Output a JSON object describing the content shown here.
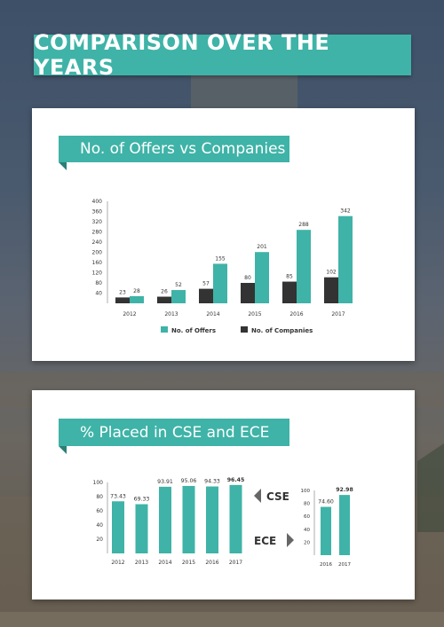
{
  "banner": {
    "title": "COMPARISON OVER THE YEARS"
  },
  "colors": {
    "teal": "#3fb3a7",
    "dark": "#333333"
  },
  "section1": {
    "title": "No. of Offers vs Companies"
  },
  "section2": {
    "title": "% Placed in CSE and ECE",
    "cse_label": "CSE",
    "ece_label": "ECE"
  },
  "chart_data": [
    {
      "type": "bar",
      "categories": [
        "2012",
        "2013",
        "2014",
        "2015",
        "2016",
        "2017"
      ],
      "series": [
        {
          "name": "No. of Offers",
          "values": [
            28,
            52,
            155,
            201,
            288,
            342
          ],
          "color": "#3fb3a7"
        },
        {
          "name": "No. of Companies",
          "values": [
            23,
            26,
            57,
            80,
            85,
            102
          ],
          "color": "#333333"
        }
      ],
      "yticks": [
        "40",
        "80",
        "120",
        "160",
        "200",
        "240",
        "280",
        "320",
        "360",
        "400"
      ],
      "ylim": [
        0,
        400
      ],
      "legend": "bottom"
    },
    {
      "type": "bar",
      "categories": [
        "2012",
        "2013",
        "2014",
        "2015",
        "2016",
        "2017"
      ],
      "values": [
        73.43,
        69.33,
        93.91,
        95.06,
        94.33,
        96.45
      ],
      "value_labels": [
        "73.43",
        "69.33",
        "93.91",
        "95.06",
        "94.33",
        "96.45"
      ],
      "yticks": [
        "20",
        "40",
        "60",
        "80",
        "100"
      ],
      "ylim": [
        0,
        100
      ]
    },
    {
      "type": "bar",
      "categories": [
        "2016",
        "2017"
      ],
      "values": [
        74.6,
        92.98
      ],
      "value_labels": [
        "74.60",
        "92.98"
      ],
      "yticks": [
        "20",
        "40",
        "60",
        "80",
        "100"
      ],
      "ylim": [
        0,
        100
      ]
    }
  ]
}
